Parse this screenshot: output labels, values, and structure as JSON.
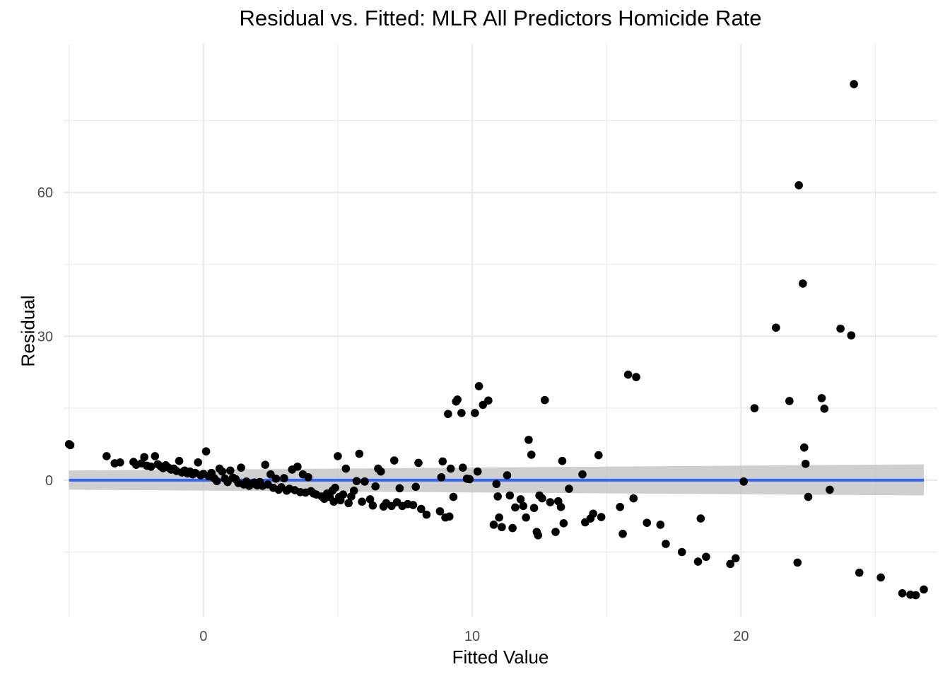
{
  "chart_data": {
    "type": "scatter",
    "title": "Residual vs. Fitted: MLR All Predictors Homicide Rate",
    "xlabel": "Fitted Value",
    "ylabel": "Residual",
    "xlim": [
      -5.2,
      27.3
    ],
    "ylim": [
      -28.5,
      91
    ],
    "x_ticks": [
      0,
      10,
      20
    ],
    "y_ticks": [
      0,
      30,
      60
    ],
    "x_minor": [
      -5,
      5,
      15,
      25
    ],
    "y_minor": [
      -15,
      15,
      45,
      75
    ],
    "grid": true,
    "colors": {
      "points": "#000000",
      "fit_line": "#3366ff",
      "ribbon": "#bfbfbf",
      "grid": "#ebebeb"
    },
    "fit_line": {
      "x_start": -5,
      "x_end": 26.8,
      "y_start": 0,
      "y_end": 0,
      "ribbon_start": [
        -2,
        2
      ],
      "ribbon_end": [
        -3.2,
        3.3
      ]
    },
    "points": [
      [
        -5,
        7.5
      ],
      [
        -4.95,
        7.3
      ],
      [
        -3.6,
        5
      ],
      [
        -3.3,
        3.5
      ],
      [
        -3.1,
        3.7
      ],
      [
        -2.6,
        3.8
      ],
      [
        -2.5,
        3.2
      ],
      [
        -2.3,
        3.5
      ],
      [
        -2.2,
        4.8
      ],
      [
        -2.1,
        3
      ],
      [
        -1.95,
        2.8
      ],
      [
        -1.8,
        5
      ],
      [
        -1.7,
        3.3
      ],
      [
        -1.6,
        2.9
      ],
      [
        -1.5,
        2.5
      ],
      [
        -1.4,
        3.1
      ],
      [
        -1.3,
        2.6
      ],
      [
        -1.2,
        2.2
      ],
      [
        -1.1,
        2.4
      ],
      [
        -1,
        1.9
      ],
      [
        -0.9,
        4
      ],
      [
        -0.8,
        1.6
      ],
      [
        -0.7,
        2
      ],
      [
        -0.6,
        1.4
      ],
      [
        -0.5,
        1.8
      ],
      [
        -0.4,
        1.2
      ],
      [
        -0.3,
        1.5
      ],
      [
        -0.2,
        3.7
      ],
      [
        -0.1,
        1
      ],
      [
        0,
        1.3
      ],
      [
        0.1,
        6
      ],
      [
        0.2,
        0.8
      ],
      [
        0.3,
        1.5
      ],
      [
        0.4,
        0.4
      ],
      [
        0.5,
        -0.2
      ],
      [
        0.6,
        2.4
      ],
      [
        0.7,
        1.8
      ],
      [
        0.8,
        0.3
      ],
      [
        0.9,
        -0.4
      ],
      [
        1,
        2
      ],
      [
        1.1,
        0.5
      ],
      [
        1.2,
        0.2
      ],
      [
        1.3,
        -0.6
      ],
      [
        1.4,
        2.6
      ],
      [
        1.5,
        -0.9
      ],
      [
        1.6,
        -0.3
      ],
      [
        1.7,
        -1.2
      ],
      [
        1.8,
        -0.8
      ],
      [
        1.9,
        -0.5
      ],
      [
        2,
        -1.1
      ],
      [
        2.1,
        -0.4
      ],
      [
        2.2,
        -1.2
      ],
      [
        2.3,
        3.2
      ],
      [
        2.4,
        -0.9
      ],
      [
        2.5,
        1.2
      ],
      [
        2.6,
        -1.6
      ],
      [
        2.7,
        0.3
      ],
      [
        2.8,
        -2
      ],
      [
        2.9,
        -1.5
      ],
      [
        3,
        0.4
      ],
      [
        3.1,
        -2.2
      ],
      [
        3.2,
        -1.8
      ],
      [
        3.3,
        2.2
      ],
      [
        3.4,
        -2.1
      ],
      [
        3.5,
        2.8
      ],
      [
        3.6,
        -2.5
      ],
      [
        3.7,
        1.2
      ],
      [
        3.8,
        -2.6
      ],
      [
        3.9,
        0.6
      ],
      [
        4,
        -2.3
      ],
      [
        4.1,
        -2.8
      ],
      [
        4.2,
        -3
      ],
      [
        4.4,
        -3.4
      ],
      [
        4.5,
        -3.9
      ],
      [
        4.6,
        -2.8
      ],
      [
        4.7,
        -3.5
      ],
      [
        4.8,
        -2.2
      ],
      [
        4.85,
        -4.5
      ],
      [
        4.9,
        -1.6
      ],
      [
        5,
        5
      ],
      [
        5.05,
        -3.5
      ],
      [
        5.1,
        -4.2
      ],
      [
        5.2,
        -3
      ],
      [
        5.3,
        2.4
      ],
      [
        5.4,
        -4.8
      ],
      [
        5.5,
        -3.4
      ],
      [
        5.6,
        -2.2
      ],
      [
        5.7,
        -0.2
      ],
      [
        5.8,
        5.5
      ],
      [
        5.9,
        -4.5
      ],
      [
        6,
        -0.3
      ],
      [
        6.2,
        -4
      ],
      [
        6.3,
        -5.3
      ],
      [
        6.4,
        -1.3
      ],
      [
        6.5,
        2.4
      ],
      [
        6.6,
        1.8
      ],
      [
        6.7,
        -5.5
      ],
      [
        6.8,
        -4.8
      ],
      [
        7,
        -5.4
      ],
      [
        7.1,
        4.1
      ],
      [
        7.2,
        -4.6
      ],
      [
        7.3,
        -1.7
      ],
      [
        7.4,
        -5.4
      ],
      [
        7.6,
        -5
      ],
      [
        7.8,
        -5.2
      ],
      [
        7.9,
        -1.4
      ],
      [
        8,
        3.6
      ],
      [
        8.1,
        -6
      ],
      [
        8.3,
        -7.2
      ],
      [
        8.8,
        -6.5
      ],
      [
        8.85,
        0.6
      ],
      [
        8.9,
        3.9
      ],
      [
        9,
        -7.8
      ],
      [
        9.1,
        13.8
      ],
      [
        9.15,
        -7.6
      ],
      [
        9.2,
        2.4
      ],
      [
        9.3,
        -3.5
      ],
      [
        9.4,
        16.4
      ],
      [
        9.45,
        16.8
      ],
      [
        9.6,
        14
      ],
      [
        9.65,
        2.6
      ],
      [
        9.8,
        0.3
      ],
      [
        9.9,
        0.2
      ],
      [
        10.1,
        14
      ],
      [
        10.2,
        1.8
      ],
      [
        10.25,
        19.6
      ],
      [
        10.4,
        15.7
      ],
      [
        10.6,
        16.6
      ],
      [
        10.8,
        -9.3
      ],
      [
        10.9,
        -0.8
      ],
      [
        10.95,
        -3.4
      ],
      [
        11,
        -7.8
      ],
      [
        11.1,
        -9.8
      ],
      [
        11.3,
        1
      ],
      [
        11.4,
        -3.2
      ],
      [
        11.5,
        -10
      ],
      [
        11.6,
        -5.7
      ],
      [
        11.8,
        -4
      ],
      [
        11.9,
        -5.4
      ],
      [
        12,
        -7.8
      ],
      [
        12.1,
        8.4
      ],
      [
        12.2,
        5.3
      ],
      [
        12.3,
        -5.8
      ],
      [
        12.4,
        -10.8
      ],
      [
        12.45,
        -11.5
      ],
      [
        12.5,
        -3.2
      ],
      [
        12.6,
        -3.8
      ],
      [
        12.7,
        16.7
      ],
      [
        12.9,
        -4.6
      ],
      [
        13.1,
        -10.8
      ],
      [
        13.2,
        -4.4
      ],
      [
        13.3,
        -5.6
      ],
      [
        13.35,
        4
      ],
      [
        13.4,
        -9
      ],
      [
        13.6,
        -1.8
      ],
      [
        14.1,
        1.2
      ],
      [
        14.2,
        -8.8
      ],
      [
        14.4,
        -8
      ],
      [
        14.5,
        -7
      ],
      [
        14.7,
        5.2
      ],
      [
        14.8,
        -7.7
      ],
      [
        15.5,
        -5.6
      ],
      [
        15.6,
        -11.2
      ],
      [
        15.8,
        22
      ],
      [
        16,
        -3.8
      ],
      [
        16.1,
        21.5
      ],
      [
        16.5,
        -8.9
      ],
      [
        17,
        -9.3
      ],
      [
        17.2,
        -13.3
      ],
      [
        17.8,
        -15
      ],
      [
        18.4,
        -17
      ],
      [
        18.5,
        -8
      ],
      [
        18.7,
        -16
      ],
      [
        19.6,
        -17.5
      ],
      [
        19.8,
        -16.3
      ],
      [
        20.1,
        -0.3
      ],
      [
        20.5,
        15
      ],
      [
        21.3,
        31.8
      ],
      [
        21.8,
        16.5
      ],
      [
        22.1,
        -17.2
      ],
      [
        22.15,
        61.5
      ],
      [
        22.3,
        41
      ],
      [
        22.35,
        6.8
      ],
      [
        22.4,
        3.4
      ],
      [
        22.5,
        -3.5
      ],
      [
        23,
        17.1
      ],
      [
        23.1,
        14.9
      ],
      [
        23.3,
        -2
      ],
      [
        23.7,
        31.6
      ],
      [
        24.1,
        30.2
      ],
      [
        24.2,
        82.6
      ],
      [
        24.4,
        -19.3
      ],
      [
        25.2,
        -20.3
      ],
      [
        26,
        -23.6
      ],
      [
        26.3,
        -23.9
      ],
      [
        26.5,
        -24
      ],
      [
        26.8,
        -22.8
      ]
    ]
  }
}
